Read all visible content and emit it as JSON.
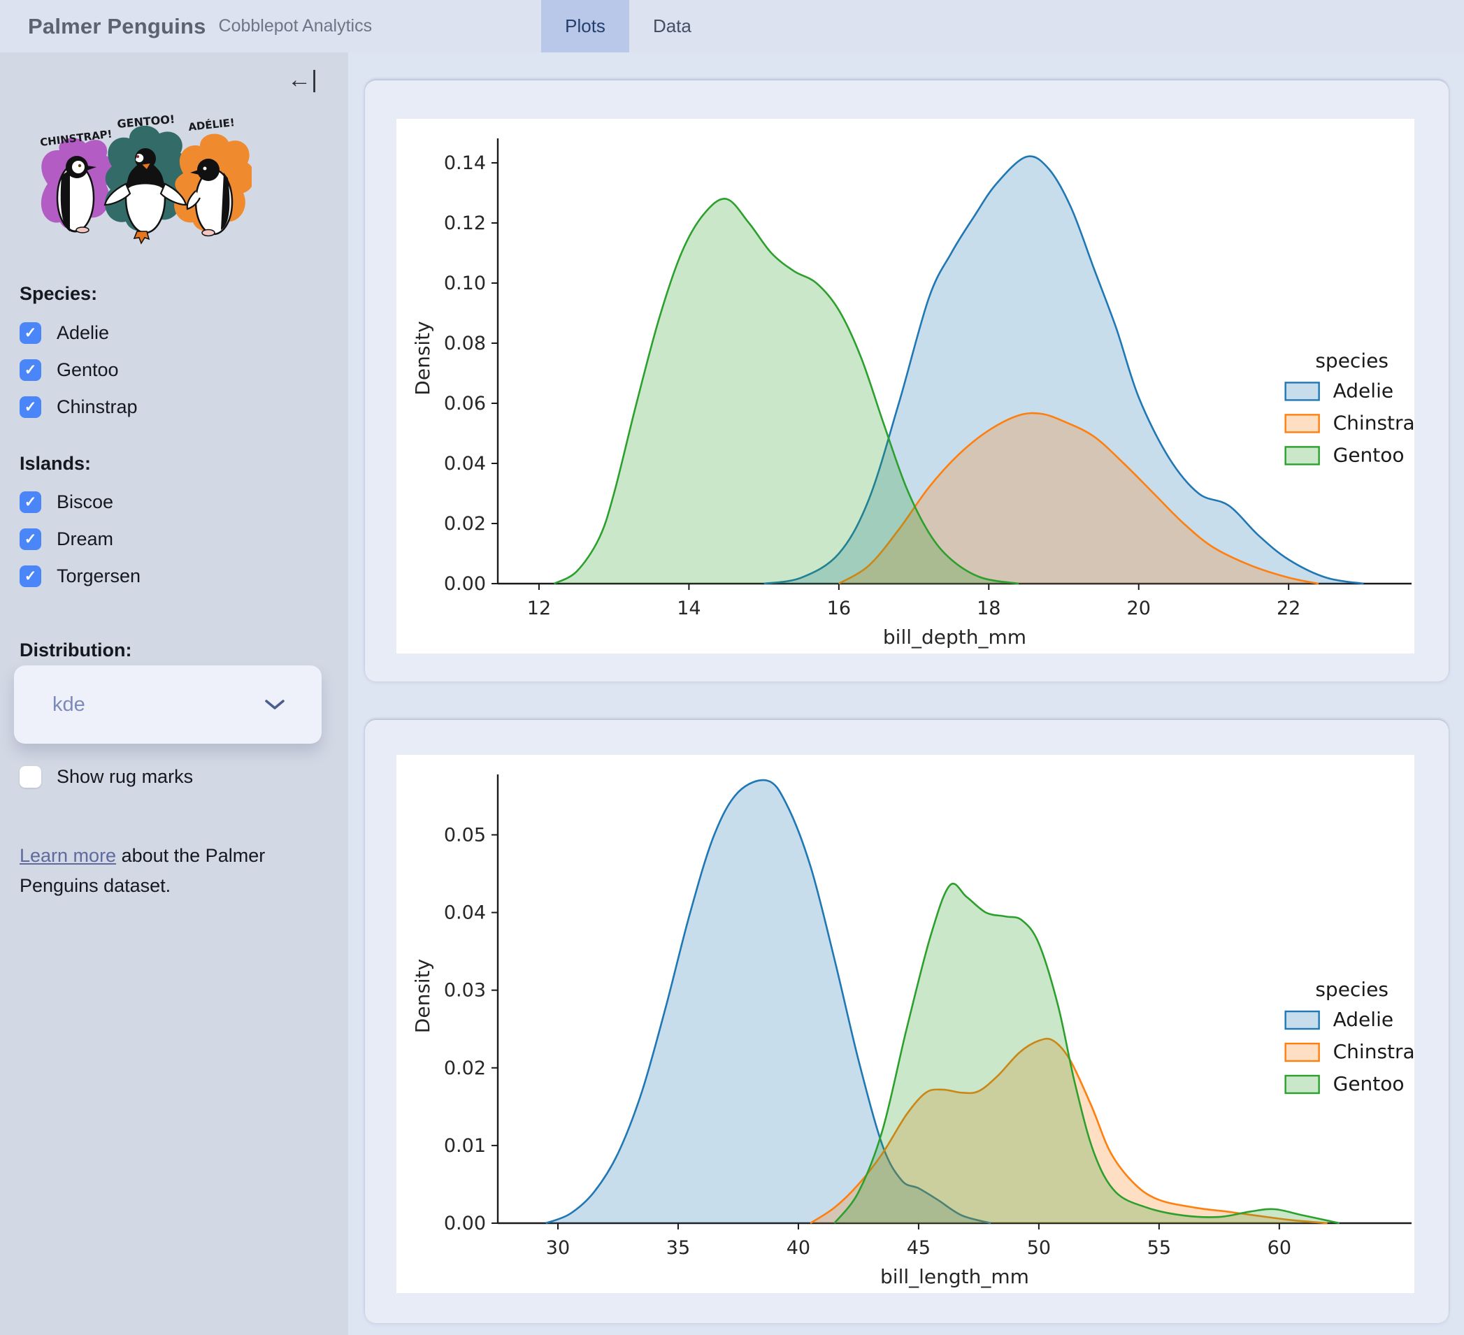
{
  "header": {
    "title": "Palmer Penguins",
    "subtitle": "Cobblepot Analytics",
    "tabs": [
      {
        "label": "Plots",
        "active": true
      },
      {
        "label": "Data",
        "active": false
      }
    ]
  },
  "sidebar": {
    "collapse_icon_glyph": "←|",
    "artwork": {
      "labels": [
        "CHINSTRAP!",
        "GENTOO!",
        "ADÉLIE!"
      ],
      "splash_colors": [
        "#b35cc4",
        "#336b69",
        "#ef8a2e"
      ]
    },
    "species": {
      "heading": "Species:",
      "items": [
        {
          "label": "Adelie",
          "checked": true
        },
        {
          "label": "Gentoo",
          "checked": true
        },
        {
          "label": "Chinstrap",
          "checked": true
        }
      ]
    },
    "islands": {
      "heading": "Islands:",
      "items": [
        {
          "label": "Biscoe",
          "checked": true
        },
        {
          "label": "Dream",
          "checked": true
        },
        {
          "label": "Torgersen",
          "checked": true
        }
      ]
    },
    "distribution": {
      "heading": "Distribution:",
      "value": "kde"
    },
    "rug": {
      "label": "Show rug marks",
      "checked": false
    },
    "learn_more": {
      "link_text": "Learn more",
      "rest_text": " about the Palmer Penguins dataset."
    }
  },
  "colors": {
    "checkbox_blue": "#4a86f8",
    "tab_active_bg": "#b9c8e8",
    "species": {
      "Adelie": "#1f77b4",
      "Chinstrap": "#ff7f0e",
      "Gentoo": "#2ca02c"
    }
  },
  "chart_data": [
    {
      "type": "area",
      "kind": "kde-density",
      "xlabel": "bill_depth_mm",
      "ylabel": "Density",
      "xlim": [
        11.45,
        23.64
      ],
      "ylim": [
        0,
        0.15
      ],
      "x_ticks": [
        12,
        14,
        16,
        18,
        20,
        22
      ],
      "x_tick_labels": [
        "12",
        "14",
        "16",
        "18",
        "20",
        "22"
      ],
      "y_ticks": [
        0,
        0.02,
        0.04,
        0.06,
        0.08,
        0.1,
        0.12,
        0.14
      ],
      "y_tick_labels": [
        "0.00",
        "0.02",
        "0.04",
        "0.06",
        "0.08",
        "0.10",
        "0.12",
        "0.14"
      ],
      "grid": false,
      "legend": {
        "title": "species",
        "x": 0.862,
        "y": 0.52,
        "position": "right"
      },
      "series": [
        {
          "name": "Adelie",
          "color": "#1f77b4",
          "points": [
            [
              15.0,
              0
            ],
            [
              15.5,
              0.002
            ],
            [
              16.0,
              0.01
            ],
            [
              16.4,
              0.028
            ],
            [
              16.8,
              0.06
            ],
            [
              17.2,
              0.095
            ],
            [
              17.5,
              0.11
            ],
            [
              17.8,
              0.122
            ],
            [
              18.1,
              0.133
            ],
            [
              18.5,
              0.142
            ],
            [
              18.8,
              0.138
            ],
            [
              19.1,
              0.125
            ],
            [
              19.4,
              0.105
            ],
            [
              19.7,
              0.085
            ],
            [
              20.0,
              0.062
            ],
            [
              20.4,
              0.042
            ],
            [
              20.8,
              0.03
            ],
            [
              21.2,
              0.026
            ],
            [
              21.6,
              0.016
            ],
            [
              22.0,
              0.008
            ],
            [
              22.5,
              0.002
            ],
            [
              23.0,
              0
            ]
          ]
        },
        {
          "name": "Chinstrap",
          "color": "#ff7f0e",
          "points": [
            [
              16.0,
              0
            ],
            [
              16.4,
              0.006
            ],
            [
              16.8,
              0.018
            ],
            [
              17.2,
              0.032
            ],
            [
              17.6,
              0.043
            ],
            [
              18.0,
              0.051
            ],
            [
              18.4,
              0.056
            ],
            [
              18.7,
              0.0565
            ],
            [
              19.0,
              0.054
            ],
            [
              19.4,
              0.049
            ],
            [
              19.8,
              0.04
            ],
            [
              20.2,
              0.03
            ],
            [
              20.6,
              0.02
            ],
            [
              21.0,
              0.012
            ],
            [
              21.5,
              0.006
            ],
            [
              22.0,
              0.002
            ],
            [
              22.4,
              0
            ]
          ]
        },
        {
          "name": "Gentoo",
          "color": "#2ca02c",
          "points": [
            [
              12.2,
              0
            ],
            [
              12.5,
              0.004
            ],
            [
              12.8,
              0.015
            ],
            [
              13.0,
              0.03
            ],
            [
              13.3,
              0.06
            ],
            [
              13.6,
              0.088
            ],
            [
              13.9,
              0.11
            ],
            [
              14.2,
              0.123
            ],
            [
              14.5,
              0.128
            ],
            [
              14.8,
              0.12
            ],
            [
              15.1,
              0.11
            ],
            [
              15.4,
              0.104
            ],
            [
              15.7,
              0.1
            ],
            [
              16.0,
              0.091
            ],
            [
              16.3,
              0.075
            ],
            [
              16.6,
              0.053
            ],
            [
              16.9,
              0.032
            ],
            [
              17.2,
              0.017
            ],
            [
              17.5,
              0.008
            ],
            [
              17.9,
              0.002
            ],
            [
              18.4,
              0
            ]
          ]
        }
      ]
    },
    {
      "type": "area",
      "kind": "kde-density",
      "xlabel": "bill_length_mm",
      "ylabel": "Density",
      "xlim": [
        27.5,
        65.5
      ],
      "ylim": [
        0,
        0.0585
      ],
      "x_ticks": [
        30,
        35,
        40,
        45,
        50,
        55,
        60
      ],
      "x_tick_labels": [
        "30",
        "35",
        "40",
        "45",
        "50",
        "55",
        "60"
      ],
      "y_ticks": [
        0,
        0.01,
        0.02,
        0.03,
        0.04,
        0.05
      ],
      "y_tick_labels": [
        "0.00",
        "0.01",
        "0.02",
        "0.03",
        "0.04",
        "0.05"
      ],
      "grid": false,
      "legend": {
        "title": "species",
        "x": 0.862,
        "y": 0.5,
        "position": "right"
      },
      "series": [
        {
          "name": "Adelie",
          "color": "#1f77b4",
          "points": [
            [
              29.5,
              0
            ],
            [
              30.5,
              0.0012
            ],
            [
              31.5,
              0.004
            ],
            [
              32.5,
              0.009
            ],
            [
              33.5,
              0.017
            ],
            [
              34.5,
              0.028
            ],
            [
              35.5,
              0.04
            ],
            [
              36.5,
              0.05
            ],
            [
              37.5,
              0.0555
            ],
            [
              38.7,
              0.057
            ],
            [
              39.5,
              0.054
            ],
            [
              40.5,
              0.046
            ],
            [
              41.5,
              0.034
            ],
            [
              42.5,
              0.021
            ],
            [
              43.5,
              0.01
            ],
            [
              44.3,
              0.0055
            ],
            [
              45.0,
              0.0045
            ],
            [
              45.8,
              0.003
            ],
            [
              46.8,
              0.001
            ],
            [
              48.0,
              0
            ]
          ]
        },
        {
          "name": "Chinstrap",
          "color": "#ff7f0e",
          "points": [
            [
              40.5,
              0
            ],
            [
              41.5,
              0.002
            ],
            [
              42.5,
              0.005
            ],
            [
              43.5,
              0.009
            ],
            [
              44.5,
              0.014
            ],
            [
              45.3,
              0.0168
            ],
            [
              46.0,
              0.0172
            ],
            [
              46.8,
              0.0168
            ],
            [
              47.5,
              0.017
            ],
            [
              48.3,
              0.019
            ],
            [
              49.2,
              0.022
            ],
            [
              50.0,
              0.0235
            ],
            [
              50.6,
              0.0235
            ],
            [
              51.3,
              0.021
            ],
            [
              52.2,
              0.015
            ],
            [
              53.0,
              0.009
            ],
            [
              54.0,
              0.005
            ],
            [
              55.0,
              0.003
            ],
            [
              56.5,
              0.002
            ],
            [
              57.8,
              0.0015
            ],
            [
              59.0,
              0.001
            ],
            [
              60.5,
              0.0004
            ],
            [
              62.0,
              0
            ]
          ]
        },
        {
          "name": "Gentoo",
          "color": "#2ca02c",
          "points": [
            [
              41.5,
              0
            ],
            [
              42.5,
              0.004
            ],
            [
              43.5,
              0.012
            ],
            [
              44.5,
              0.025
            ],
            [
              45.5,
              0.037
            ],
            [
              46.3,
              0.0435
            ],
            [
              47.0,
              0.042
            ],
            [
              47.8,
              0.04
            ],
            [
              48.6,
              0.0395
            ],
            [
              49.3,
              0.039
            ],
            [
              50.0,
              0.036
            ],
            [
              50.8,
              0.028
            ],
            [
              51.5,
              0.018
            ],
            [
              52.3,
              0.009
            ],
            [
              53.2,
              0.004
            ],
            [
              54.5,
              0.002
            ],
            [
              56.0,
              0.001
            ],
            [
              57.5,
              0.0008
            ],
            [
              58.8,
              0.0015
            ],
            [
              59.8,
              0.0018
            ],
            [
              61.0,
              0.001
            ],
            [
              62.5,
              0
            ]
          ]
        }
      ]
    }
  ]
}
